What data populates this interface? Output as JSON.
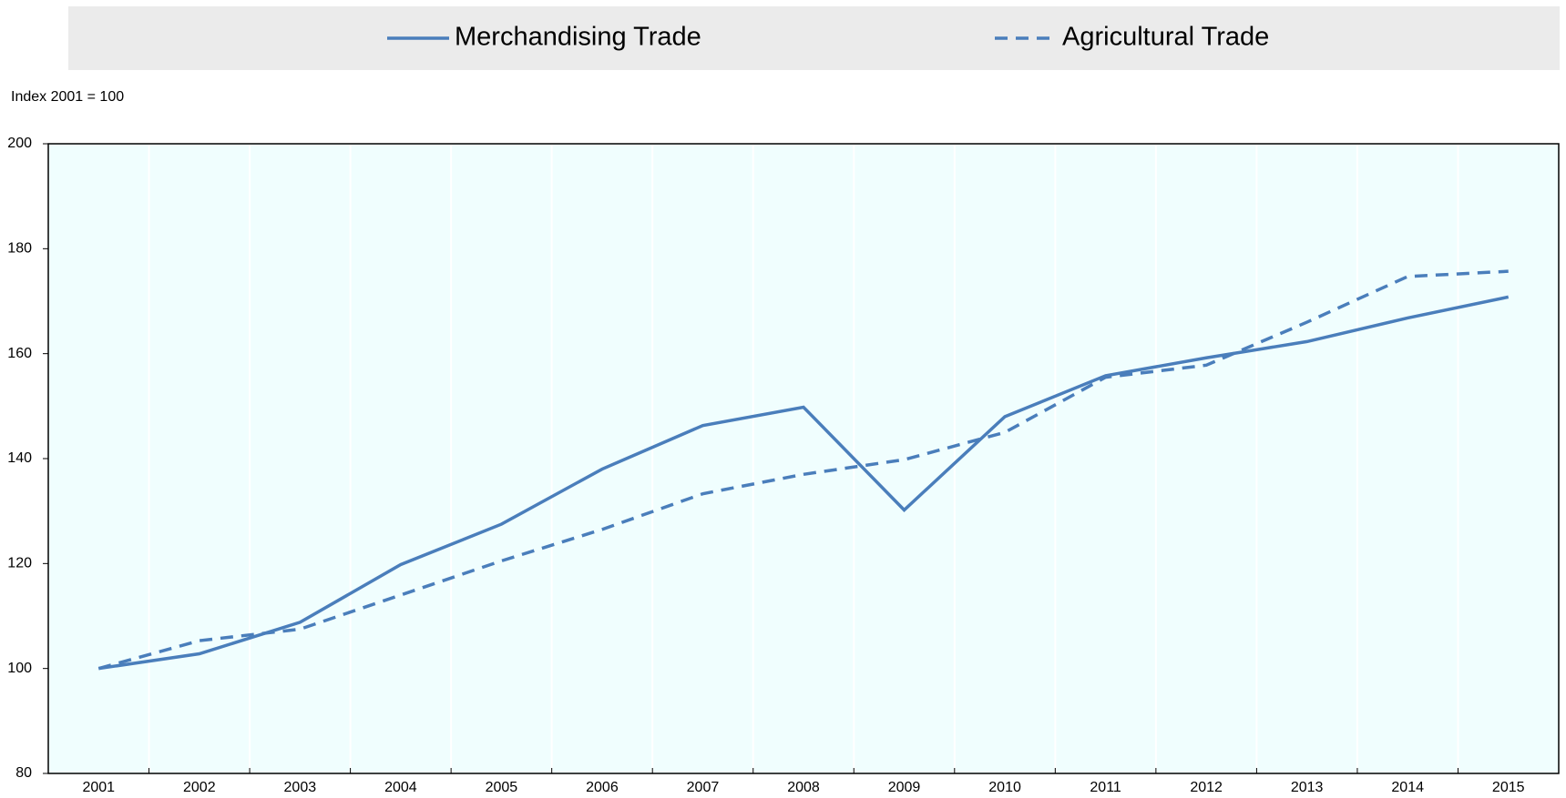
{
  "chart_data": {
    "type": "line",
    "y_axis_label": "Index 2001 = 100",
    "categories": [
      "2001",
      "2002",
      "2003",
      "2004",
      "2005",
      "2006",
      "2007",
      "2008",
      "2009",
      "2010",
      "2011",
      "2012",
      "2013",
      "2014",
      "2015"
    ],
    "series": [
      {
        "name": "Merchandising Trade",
        "color": "#4a7ebb",
        "dashed": false,
        "values": [
          100,
          102.8,
          108.8,
          119.8,
          127.5,
          138,
          146.3,
          149.8,
          130.2,
          148,
          155.8,
          159.2,
          162.3,
          166.8,
          170.8
        ]
      },
      {
        "name": "Agricultural Trade",
        "color": "#4a7ebb",
        "dashed": true,
        "values": [
          100,
          105.3,
          107.5,
          114,
          120.5,
          126.5,
          133.3,
          137,
          139.8,
          145,
          155.5,
          157.8,
          166,
          174.7,
          175.7
        ]
      }
    ],
    "ylim": [
      80,
      200
    ],
    "yticks": [
      80,
      100,
      120,
      140,
      160,
      180,
      200
    ],
    "legend": "top",
    "grid": false
  }
}
